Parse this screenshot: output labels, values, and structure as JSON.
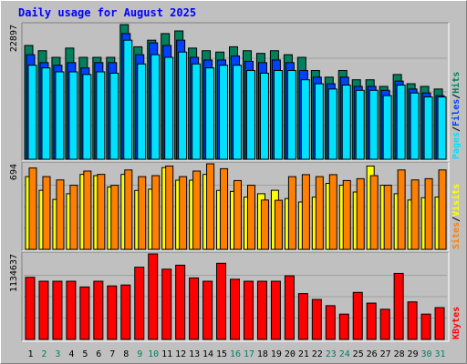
{
  "title": "Daily usage for August 2025",
  "colors": {
    "background": "#C0C0C0",
    "plot_bg": "#C0C0C0",
    "title": "#0000FF",
    "hits": "#00805C",
    "files": "#0040FF",
    "pages": "#00E0FF",
    "visits": "#FFFF00",
    "sites": "#FF8000",
    "kbytes": "#FF0000",
    "day_weekday": "#000000",
    "day_weekend": "#00805C"
  },
  "chart_data": [
    {
      "type": "bar",
      "name": "hits-files-pages",
      "ymax_label": "22897",
      "ymax": 22897,
      "legend": {
        "hits": "Hits",
        "files": "Files",
        "pages": "Pages",
        "sep": "/"
      },
      "series": [
        {
          "name": "Hits",
          "values": [
            19345,
            18448,
            17326,
            18897,
            17326,
            17326,
            17326,
            22897,
            19121,
            20243,
            21366,
            21815,
            18897,
            18448,
            18223,
            19121,
            18448,
            18000,
            18448,
            17775,
            17326,
            15082,
            13959,
            15082,
            13510,
            13510,
            12388,
            14408,
            12837,
            12388,
            11939
          ]
        },
        {
          "name": "Files",
          "values": [
            17775,
            16428,
            15980,
            16428,
            15531,
            16428,
            16428,
            21366,
            17775,
            19794,
            19345,
            20243,
            17326,
            16877,
            16877,
            17551,
            16653,
            16428,
            16877,
            16428,
            15082,
            13959,
            12837,
            13959,
            12388,
            12388,
            11715,
            13285,
            11939,
            11266,
            10817
          ]
        },
        {
          "name": "Pages",
          "values": [
            15980,
            15531,
            14857,
            14857,
            14408,
            14857,
            14633,
            20243,
            16204,
            17775,
            17326,
            18223,
            16204,
            15531,
            15980,
            15980,
            15082,
            14633,
            15082,
            15082,
            13510,
            12837,
            11939,
            12612,
            11715,
            11715,
            10817,
            12612,
            11266,
            10592,
            10592
          ]
        }
      ]
    },
    {
      "type": "bar",
      "name": "visits-sites",
      "ymax_label": "694",
      "ymax": 694,
      "legend": {
        "sites": "Sites",
        "visits": "Visits",
        "sep": "/"
      },
      "series": [
        {
          "name": "Visits",
          "values": [
            590,
            479,
            405,
            451,
            608,
            598,
            506,
            608,
            478,
            488,
            663,
            561,
            561,
            608,
            478,
            470,
            424,
            451,
            479,
            412,
            384,
            424,
            535,
            520,
            465,
            676,
            520,
            451,
            400,
            419,
            424
          ]
        },
        {
          "name": "Sites",
          "values": [
            660,
            590,
            563,
            520,
            635,
            608,
            520,
            644,
            590,
            598,
            676,
            590,
            635,
            694,
            654,
            558,
            520,
            400,
            398,
            590,
            606,
            590,
            606,
            558,
            573,
            598,
            520,
            644,
            563,
            573,
            644
          ]
        }
      ]
    },
    {
      "type": "bar",
      "name": "kbytes",
      "ymax_label": "1134637",
      "ymax": 1134637,
      "legend": {
        "kbytes": "KBytes"
      },
      "series": [
        {
          "name": "KBytes",
          "values": [
            824000,
            772000,
            772000,
            772000,
            696000,
            772000,
            710000,
            722000,
            958000,
            1134637,
            932000,
            985000,
            816000,
            772000,
            1010000,
            798000,
            772000,
            772000,
            772000,
            844000,
            608000,
            530000,
            448000,
            336000,
            624000,
            482000,
            400000,
            876000,
            498000,
            336000,
            422000
          ]
        }
      ]
    }
  ],
  "days": [
    "1",
    "2",
    "3",
    "4",
    "5",
    "6",
    "7",
    "8",
    "9",
    "10",
    "11",
    "12",
    "13",
    "14",
    "15",
    "16",
    "17",
    "18",
    "19",
    "20",
    "21",
    "22",
    "23",
    "24",
    "25",
    "26",
    "27",
    "28",
    "29",
    "30",
    "31"
  ],
  "weekend_days": [
    2,
    3,
    9,
    10,
    16,
    17,
    23,
    24,
    30,
    31
  ]
}
